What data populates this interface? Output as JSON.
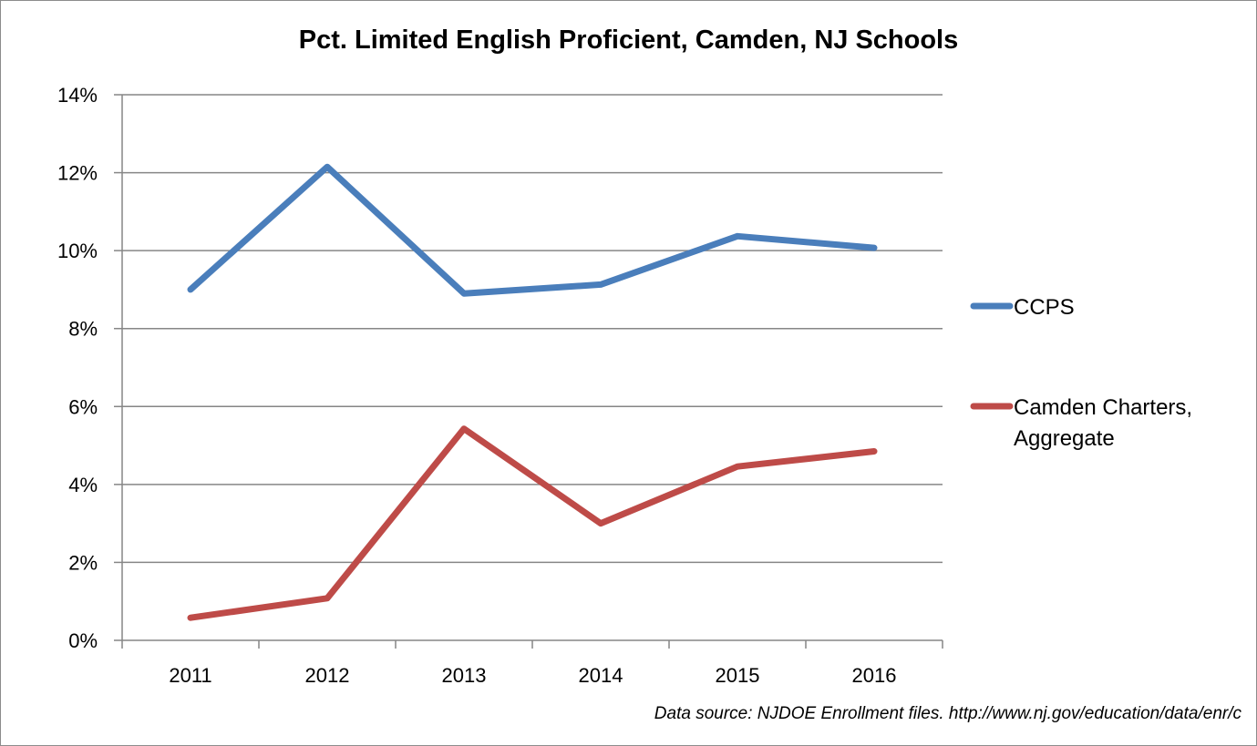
{
  "chart_data": {
    "type": "line",
    "title": "Pct. Limited English Proficient, Camden, NJ Schools",
    "xlabel": "",
    "ylabel": "",
    "categories": [
      "2011",
      "2012",
      "2013",
      "2014",
      "2015",
      "2016"
    ],
    "series": [
      {
        "name": "CCPS",
        "color": "#4a7ebb",
        "values": [
          0.09,
          0.1215,
          0.089,
          0.0913,
          0.1037,
          0.1007
        ]
      },
      {
        "name": "Camden Charters, Aggregate",
        "name_lines": [
          "Camden Charters,",
          "Aggregate"
        ],
        "color": "#be4b48",
        "values": [
          0.0058,
          0.0108,
          0.0543,
          0.03,
          0.0446,
          0.0485
        ]
      }
    ],
    "ylim": [
      0,
      0.14
    ],
    "yticks": [
      0,
      0.02,
      0.04,
      0.06,
      0.08,
      0.1,
      0.12,
      0.14
    ],
    "ytick_labels": [
      "0%",
      "2%",
      "4%",
      "6%",
      "8%",
      "10%",
      "12%",
      "14%"
    ],
    "grid": true,
    "legend_position": "right",
    "source_note": "Data source: NJDOE Enrollment files. http://www.nj.gov/education/data/enr/c"
  }
}
